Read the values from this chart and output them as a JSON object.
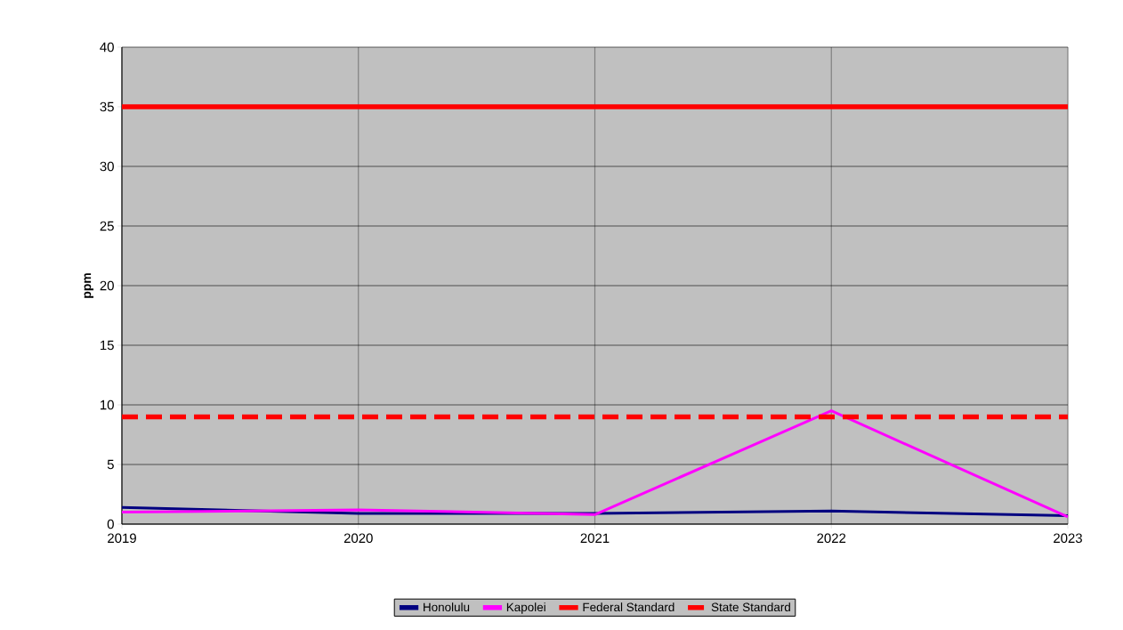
{
  "chart_data": {
    "type": "line",
    "ylabel": "ppm",
    "x": [
      2019,
      2020,
      2021,
      2022,
      2023
    ],
    "series": [
      {
        "name": "Honolulu",
        "color": "#000080",
        "values": [
          1.4,
          0.9,
          0.9,
          1.1,
          0.7
        ]
      },
      {
        "name": "Kapolei",
        "color": "#ff00ff",
        "values": [
          1.0,
          1.2,
          0.8,
          9.5,
          0.6
        ]
      },
      {
        "name": "Federal Standard",
        "color": "#ff0000",
        "values": [
          35,
          35,
          35,
          35,
          35
        ],
        "line_style": "solid"
      },
      {
        "name": "State Standard",
        "color": "#ff0000",
        "values": [
          9,
          9,
          9,
          9,
          9
        ],
        "line_style": "dashed"
      }
    ],
    "xlim": [
      2019,
      2023
    ],
    "xticks": [
      2019,
      2020,
      2021,
      2022,
      2023
    ],
    "ylim": [
      0,
      40
    ],
    "yticks": [
      0,
      5,
      10,
      15,
      20,
      25,
      30,
      35,
      40
    ],
    "grid": true,
    "legend": "bottom",
    "marker": "none"
  }
}
